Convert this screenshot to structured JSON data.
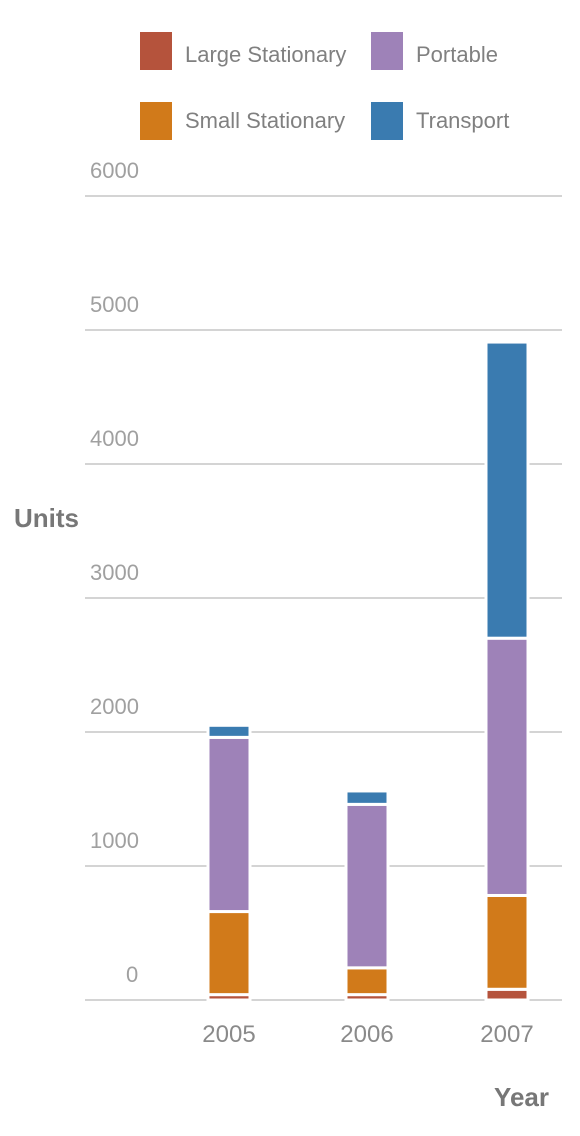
{
  "chart_data": {
    "type": "bar",
    "stacked": true,
    "categories": [
      "2005",
      "2006",
      "2007"
    ],
    "series": [
      {
        "name": "Large Stationary",
        "color": "#b5533c",
        "values": [
          40,
          40,
          80
        ]
      },
      {
        "name": "Small Stationary",
        "color": "#d17a1a",
        "values": [
          620,
          200,
          700
        ]
      },
      {
        "name": "Portable",
        "color": "#9e82b8",
        "values": [
          1300,
          1220,
          1920
        ]
      },
      {
        "name": "Transport",
        "color": "#3a7bb0",
        "values": [
          90,
          100,
          2210
        ]
      }
    ],
    "title": "",
    "xlabel": "Year",
    "ylabel": "Units",
    "ylim": [
      0,
      6000
    ],
    "yticks": [
      "0",
      "1000",
      "2000",
      "3000",
      "4000",
      "5000",
      "6000"
    ],
    "grid": true,
    "legend_position": "top"
  }
}
